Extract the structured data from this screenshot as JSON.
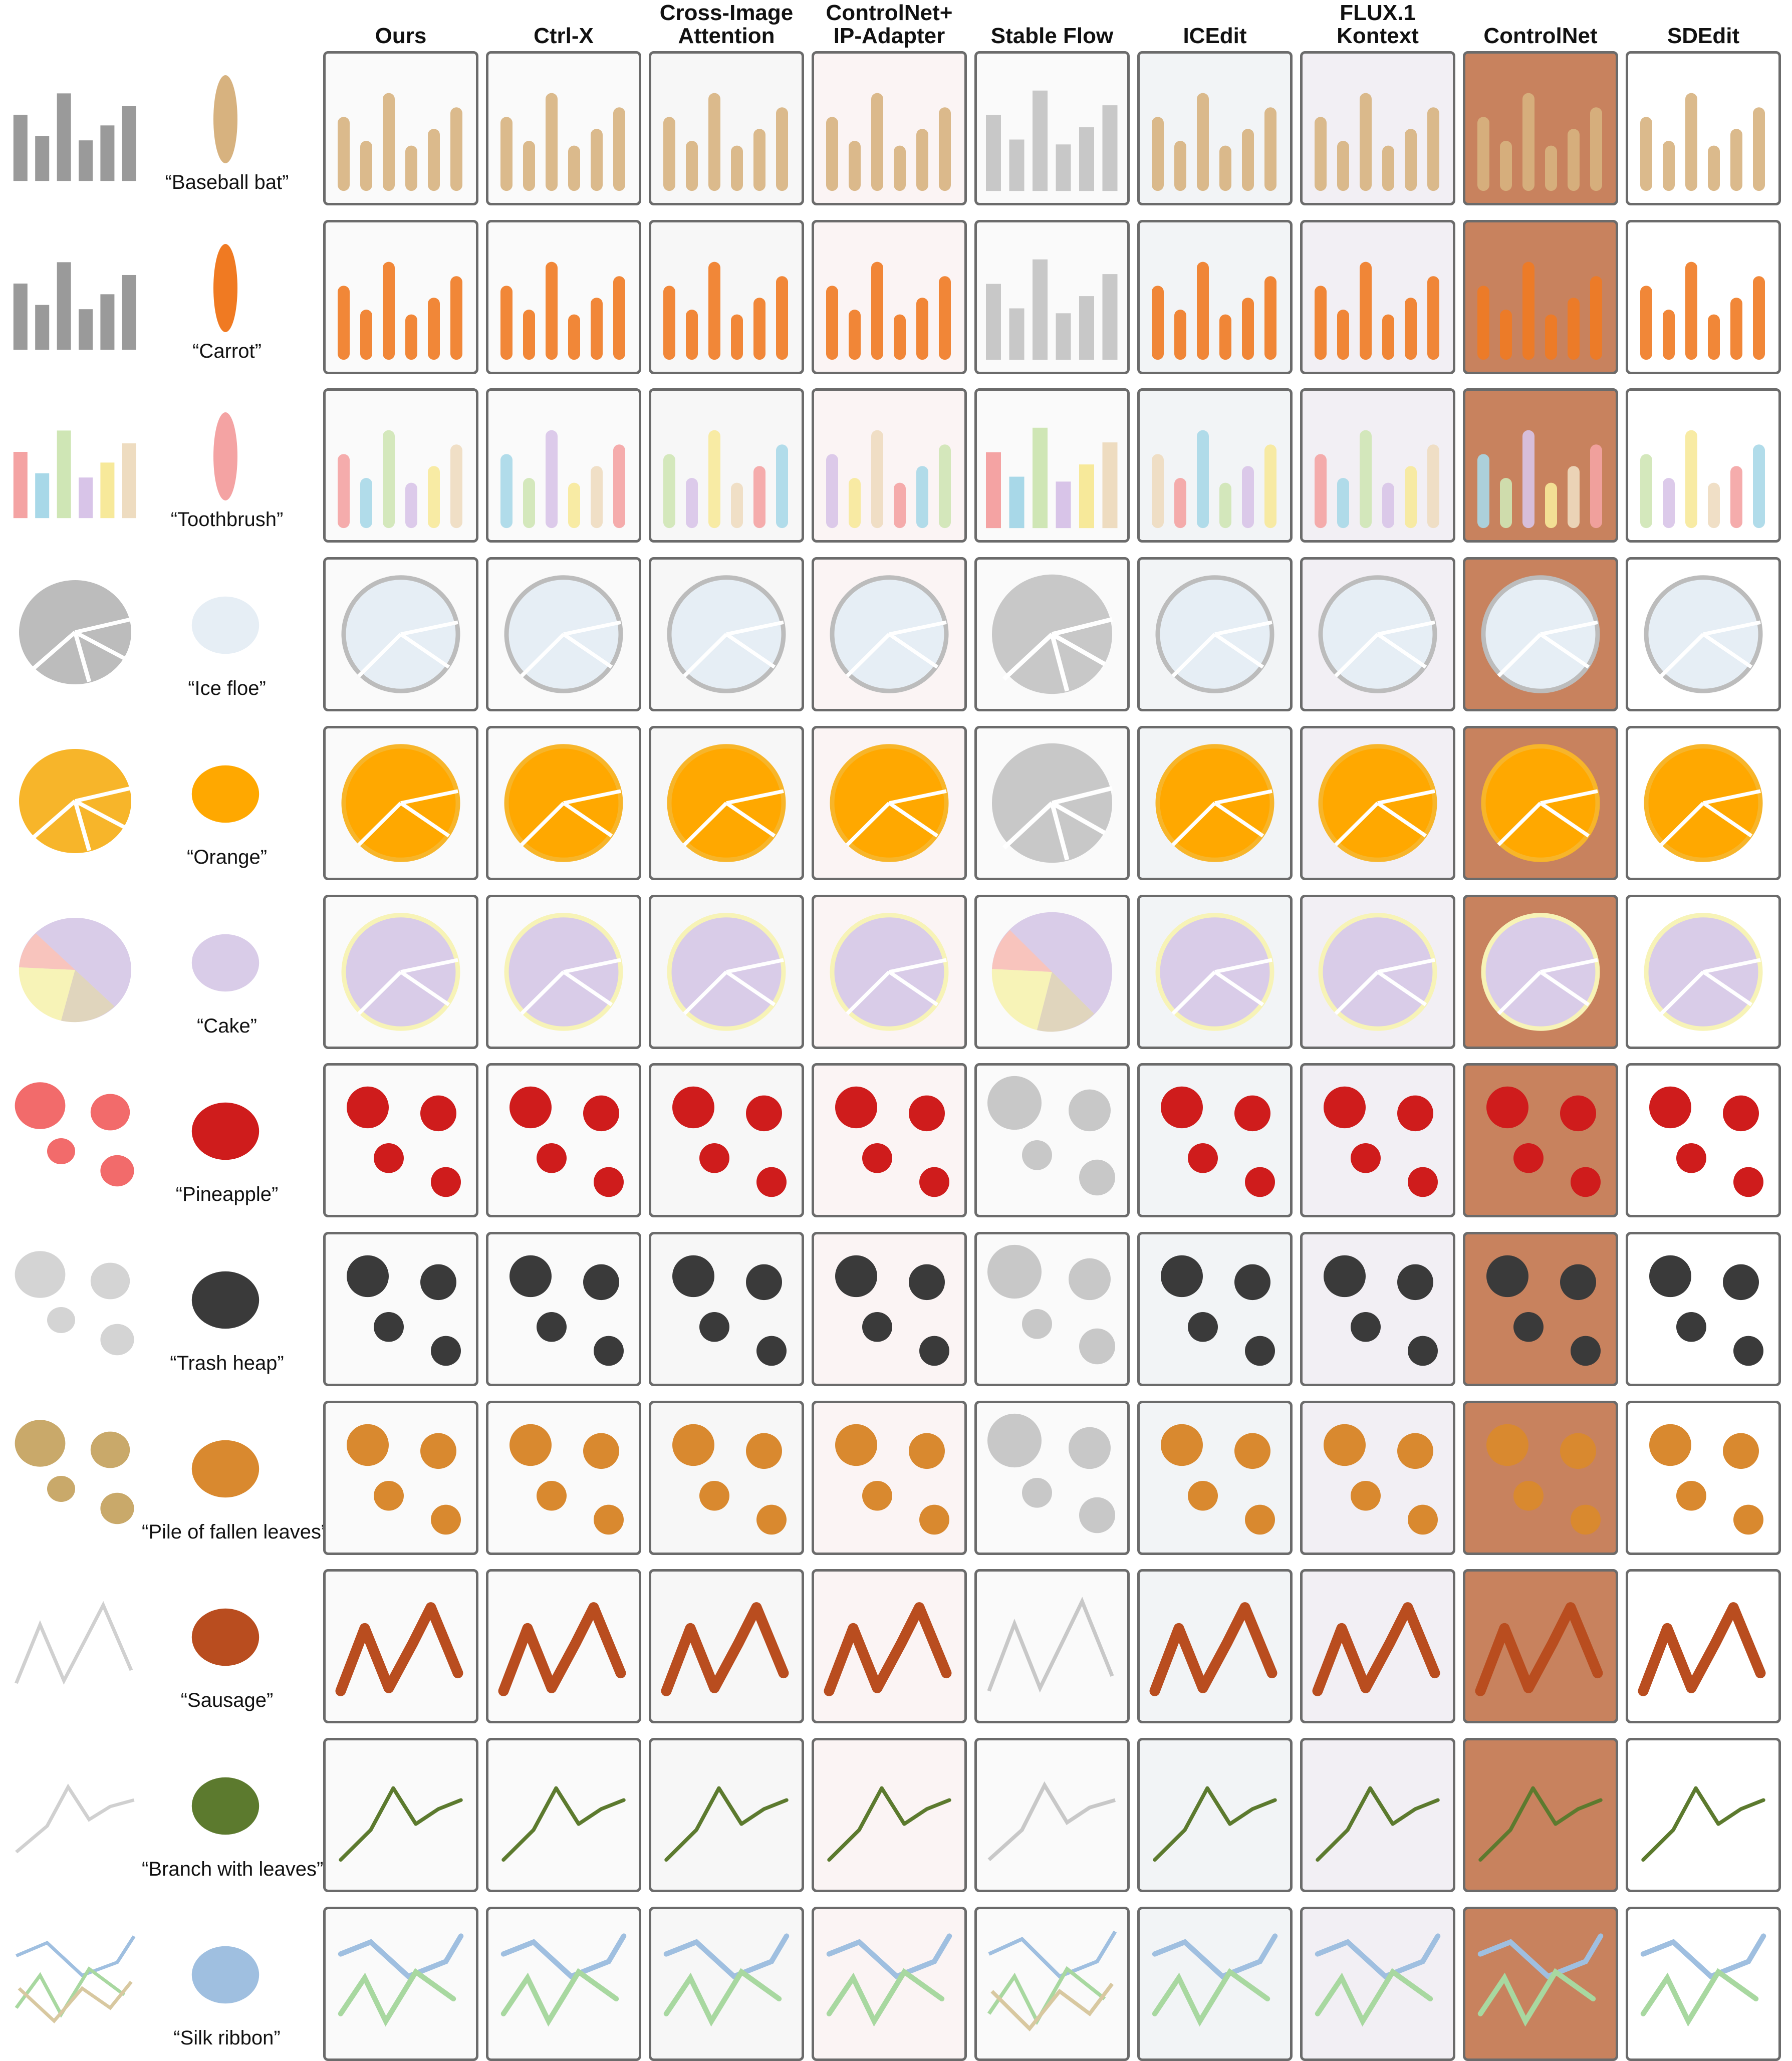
{
  "columns": [
    "Ours",
    "Ctrl-X",
    "Cross-Image\nAttention",
    "ControlNet+\nIP-Adapter",
    "Stable Flow",
    "ICEdit",
    "FLUX.1 Kontext",
    "ControlNet",
    "SDEdit"
  ],
  "rows": [
    {
      "label": "“Baseball bat”",
      "kind": "bar",
      "object": "baseball-bat",
      "colors": [
        "#d7b27f",
        "#9a9a9a"
      ]
    },
    {
      "label": "“Carrot”",
      "kind": "bar",
      "object": "carrot",
      "colors": [
        "#f07a22",
        "#9a9a9a"
      ]
    },
    {
      "label": "“Toothbrush”",
      "kind": "bar",
      "object": "toothbrush",
      "colors": [
        "#f4a3a3",
        "#cfe6b5",
        "#d8c4e8"
      ]
    },
    {
      "label": "“Ice floe”",
      "kind": "pie",
      "object": "ice-floe",
      "colors": [
        "#e6eef5",
        "#bcbcbc"
      ]
    },
    {
      "label": "“Orange”",
      "kind": "pie",
      "object": "orange",
      "colors": [
        "#ffa800",
        "#f7b52a"
      ]
    },
    {
      "label": "“Cake”",
      "kind": "pie",
      "object": "cake",
      "colors": [
        "#d9cce8",
        "#f7f3b7",
        "#e0d5bd",
        "#f8c4bd"
      ]
    },
    {
      "label": "“Pineapple”",
      "kind": "circles",
      "object": "apple",
      "colors": [
        "#cf1c1c",
        "#f26b6b"
      ]
    },
    {
      "label": "“Trash heap”",
      "kind": "circles",
      "object": "trash-heap",
      "colors": [
        "#3a3a3a",
        "#d4d4d4"
      ]
    },
    {
      "label": "“Pile of fallen leaves”",
      "kind": "circles",
      "object": "fallen-leaves",
      "colors": [
        "#d9892f",
        "#c9a96a"
      ]
    },
    {
      "label": "“Sausage”",
      "kind": "line",
      "object": "sausage",
      "colors": [
        "#b94d1f",
        "#d0d0d0"
      ]
    },
    {
      "label": "“Branch with leaves”",
      "kind": "line",
      "object": "branch",
      "colors": [
        "#5c7a2e",
        "#d0d0d0"
      ]
    },
    {
      "label": "“Silk ribbon”",
      "kind": "multiline",
      "object": "ribbon",
      "colors": [
        "#9fbfe0",
        "#a8d8a0",
        "#d8c8a0"
      ]
    }
  ]
}
